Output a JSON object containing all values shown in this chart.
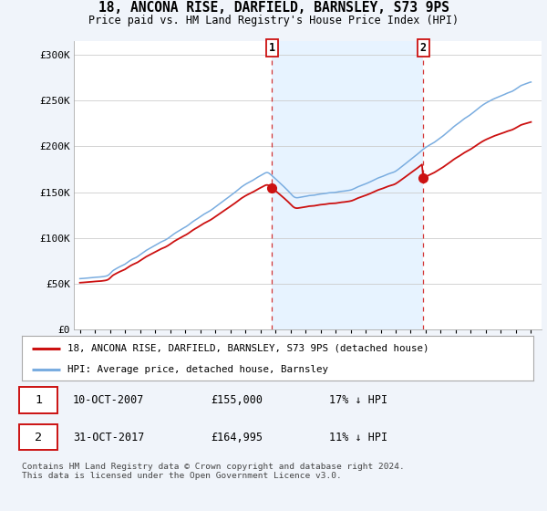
{
  "title": "18, ANCONA RISE, DARFIELD, BARNSLEY, S73 9PS",
  "subtitle": "Price paid vs. HM Land Registry's House Price Index (HPI)",
  "ylabel_ticks": [
    "£0",
    "£50K",
    "£100K",
    "£150K",
    "£200K",
    "£250K",
    "£300K"
  ],
  "ytick_values": [
    0,
    50000,
    100000,
    150000,
    200000,
    250000,
    300000
  ],
  "ylim": [
    0,
    315000
  ],
  "hpi_color": "#7aade0",
  "price_color": "#cc1111",
  "sale1_year": 2007.78,
  "sale1_price": 155000,
  "sale2_year": 2017.83,
  "sale2_price": 164995,
  "legend_label1": "18, ANCONA RISE, DARFIELD, BARNSLEY, S73 9PS (detached house)",
  "legend_label2": "HPI: Average price, detached house, Barnsley",
  "table_row1": [
    "1",
    "10-OCT-2007",
    "£155,000",
    "17% ↓ HPI"
  ],
  "table_row2": [
    "2",
    "31-OCT-2017",
    "£164,995",
    "11% ↓ HPI"
  ],
  "footnote": "Contains HM Land Registry data © Crown copyright and database right 2024.\nThis data is licensed under the Open Government Licence v3.0.",
  "bg_color": "#f0f4fa",
  "plot_bg_color": "#ffffff",
  "shade_color": "#ddeeff",
  "grid_color": "#cccccc"
}
